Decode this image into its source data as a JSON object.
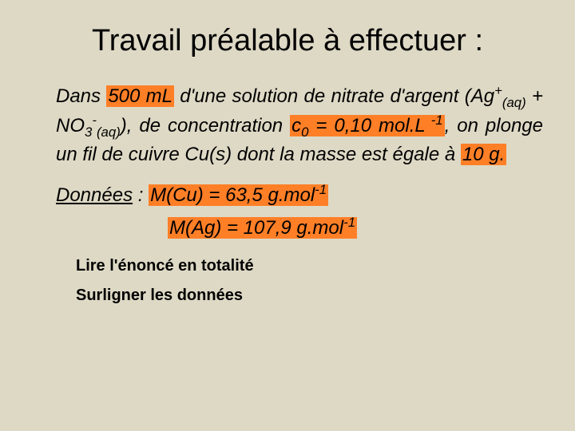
{
  "slide": {
    "background_color": "#ded9c5",
    "highlight_color": "#ff7f27",
    "title": "Travail préalable à effectuer :",
    "paragraph": {
      "t1": "Dans ",
      "h1": "500 mL",
      "t2": " d'une solution de nitrate d'argent (Ag",
      "sup1": "+",
      "sub1": "(aq)",
      "t3": " + NO",
      "sub2": "3",
      "sup2": "-",
      "sub3": "(aq)",
      "t4": "), de concentration ",
      "h2": "c",
      "h2sub": "0",
      "h2b": " = 0,10 mol.L",
      "h2sup": " -1",
      "t5": ", on plonge un fil de cuivre Cu(s) dont la masse est égale à ",
      "h3": "10 g.",
      "space": " "
    },
    "data_label": "Données",
    "data_colon": " : ",
    "mcu": "M(Cu) = 63,5 g.mol",
    "mcu_sup": "-1",
    "mag": "M(Ag) = 107,9 g.mol",
    "mag_sup": "-1",
    "instr1": "Lire l'énoncé en totalité",
    "instr2": "Surligner les données"
  }
}
